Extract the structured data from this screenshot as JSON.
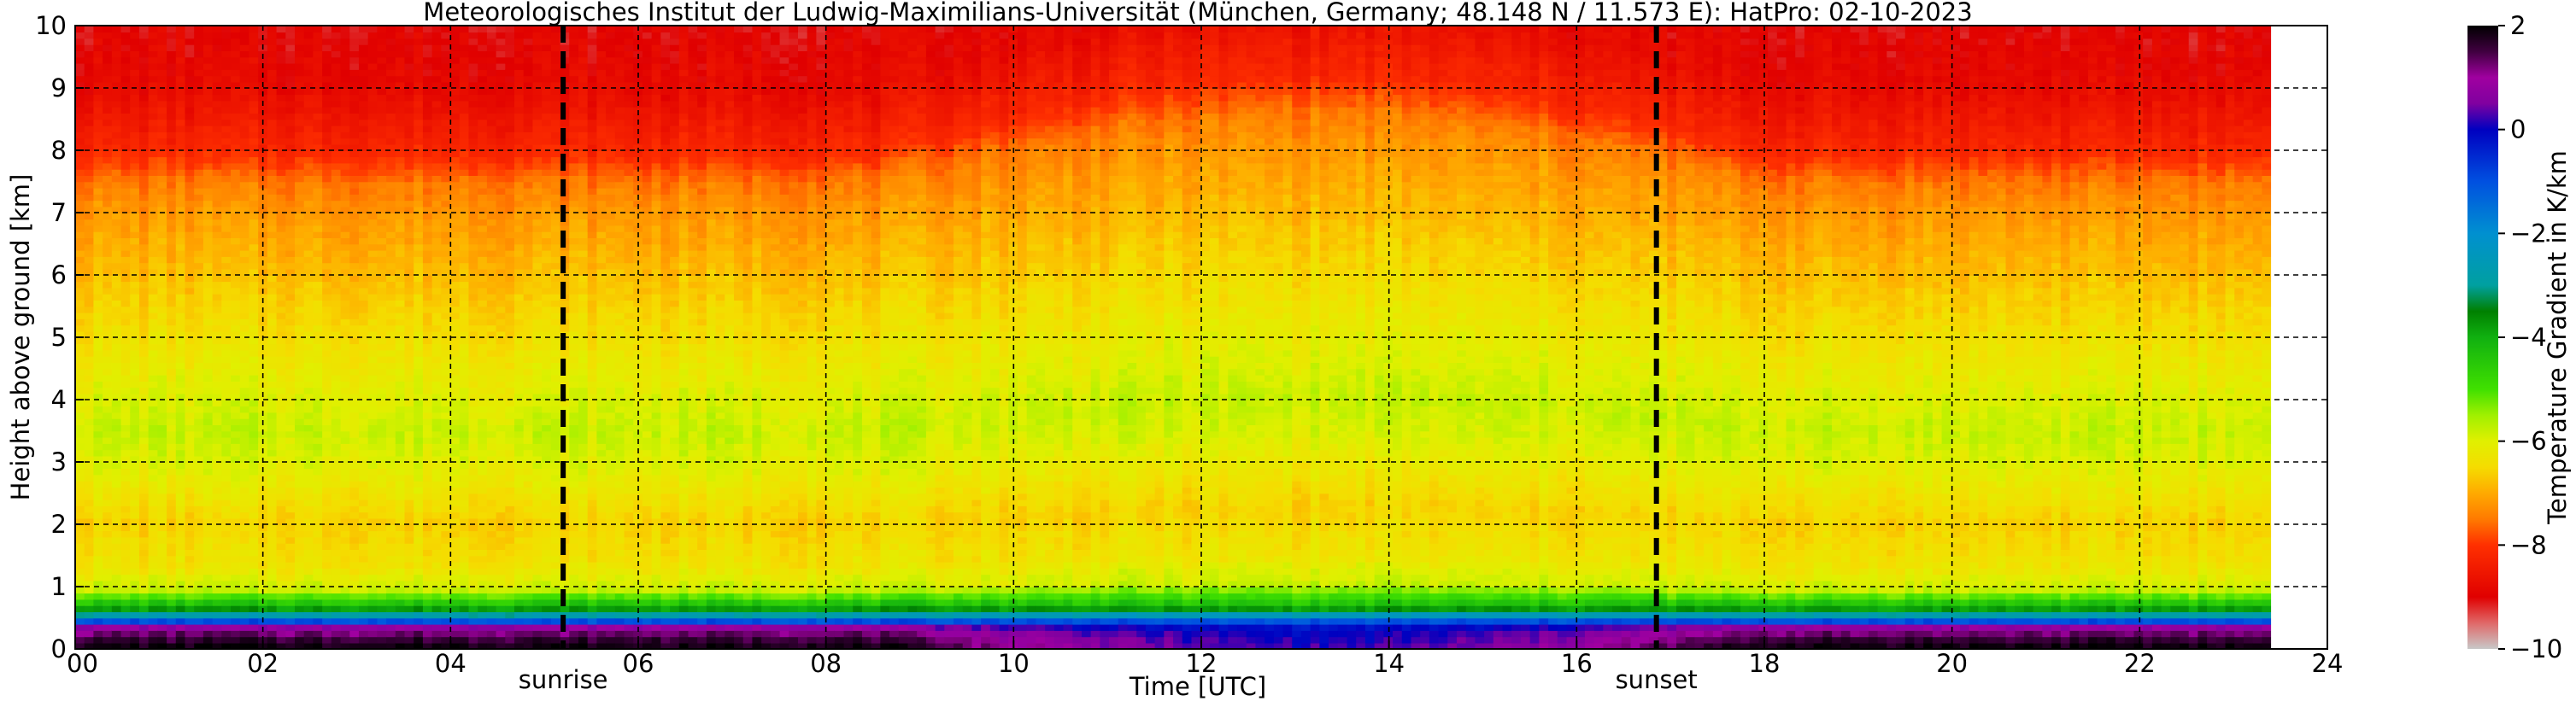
{
  "chart_data": {
    "type": "heatmap",
    "title": "Meteorologisches Institut der Ludwig-Maximilians-Universität (München, Germany; 48.148 N / 11.573 E):    HatPro: 02-10-2023",
    "xlabel": "Time [UTC]",
    "ylabel": "Height above ground [km]",
    "xlim": [
      0,
      24
    ],
    "ylim": [
      0,
      10
    ],
    "x_ticks": [
      "00",
      "02",
      "04",
      "06",
      "08",
      "10",
      "12",
      "14",
      "16",
      "18",
      "20",
      "22",
      "24"
    ],
    "y_ticks": [
      "0",
      "1",
      "2",
      "3",
      "4",
      "5",
      "6",
      "7",
      "8",
      "9",
      "10"
    ],
    "grid": true,
    "annotations": [
      {
        "label": "sunrise",
        "x": 5.2
      },
      {
        "label": "sunset",
        "x": 16.85
      }
    ],
    "data_end_x": 23.4,
    "colorbar": {
      "label": "Temperature Gradient in K/km",
      "range": [
        -10,
        2
      ],
      "ticks": [
        "2",
        "0",
        "−2",
        "−4",
        "−6",
        "−8",
        "−10"
      ]
    },
    "colormap": [
      {
        "v": -10,
        "c": "#c8c8c8"
      },
      {
        "v": -9.5,
        "c": "#e06868"
      },
      {
        "v": -9,
        "c": "#e00000"
      },
      {
        "v": -8,
        "c": "#ff3000"
      },
      {
        "v": -7.5,
        "c": "#ff7a00"
      },
      {
        "v": -7,
        "c": "#ffaa00"
      },
      {
        "v": -6.5,
        "c": "#f5dc00"
      },
      {
        "v": -6,
        "c": "#e0f000"
      },
      {
        "v": -5.5,
        "c": "#a0f000"
      },
      {
        "v": -5,
        "c": "#40e000"
      },
      {
        "v": -4,
        "c": "#10b010"
      },
      {
        "v": -3.5,
        "c": "#008000"
      },
      {
        "v": -3,
        "c": "#00a0a0"
      },
      {
        "v": -2,
        "c": "#0090d0"
      },
      {
        "v": -1,
        "c": "#0050e0"
      },
      {
        "v": 0,
        "c": "#0000c0"
      },
      {
        "v": 0.5,
        "c": "#8000a0"
      },
      {
        "v": 1,
        "c": "#a000a0"
      },
      {
        "v": 1.5,
        "c": "#400040"
      },
      {
        "v": 2,
        "c": "#000000"
      }
    ],
    "profile": [
      {
        "z": 0.0,
        "v": 2.0
      },
      {
        "z": 0.2,
        "v": 1.5
      },
      {
        "z": 0.35,
        "v": 0.8
      },
      {
        "z": 0.45,
        "v": -1.0
      },
      {
        "z": 0.55,
        "v": -2.8
      },
      {
        "z": 0.65,
        "v": -3.8
      },
      {
        "z": 0.8,
        "v": -4.8
      },
      {
        "z": 0.95,
        "v": -5.8
      },
      {
        "z": 1.3,
        "v": -6.3
      },
      {
        "z": 2.0,
        "v": -6.6
      },
      {
        "z": 3.0,
        "v": -6.0
      },
      {
        "z": 3.5,
        "v": -5.8
      },
      {
        "z": 4.0,
        "v": -6.0
      },
      {
        "z": 5.0,
        "v": -6.4
      },
      {
        "z": 6.0,
        "v": -6.8
      },
      {
        "z": 7.0,
        "v": -7.2
      },
      {
        "z": 7.5,
        "v": -7.5
      },
      {
        "z": 8.0,
        "v": -8.2
      },
      {
        "z": 9.0,
        "v": -8.8
      },
      {
        "z": 10.0,
        "v": -9.0
      }
    ]
  }
}
